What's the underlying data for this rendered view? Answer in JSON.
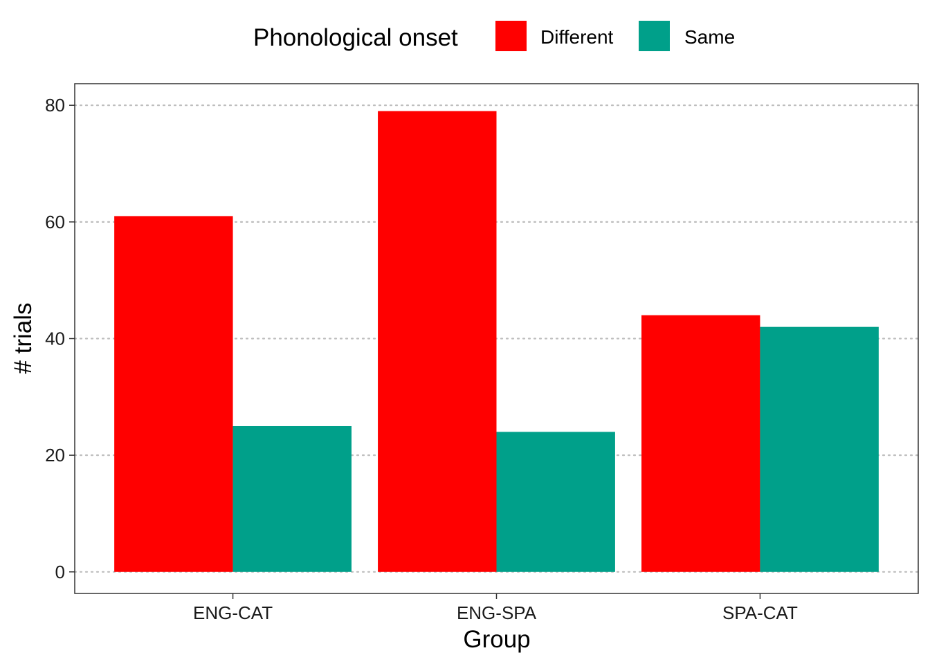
{
  "chart_data": {
    "type": "bar",
    "categories": [
      "ENG-CAT",
      "ENG-SPA",
      "SPA-CAT"
    ],
    "series": [
      {
        "name": "Different",
        "values": [
          61,
          79,
          44
        ],
        "color": "#FF0000"
      },
      {
        "name": "Same",
        "values": [
          25,
          24,
          42
        ],
        "color": "#00A08A"
      }
    ],
    "xlabel": "Group",
    "ylabel": "# trials",
    "ylim": [
      -3.7,
      83.7
    ],
    "yticks": [
      0,
      20,
      40,
      60,
      80
    ],
    "ytick_labels": [
      "0",
      "20",
      "40",
      "60",
      "80"
    ],
    "legend": {
      "title": "Phonological onset",
      "position": "top"
    },
    "grid": "horizontal dotted"
  }
}
